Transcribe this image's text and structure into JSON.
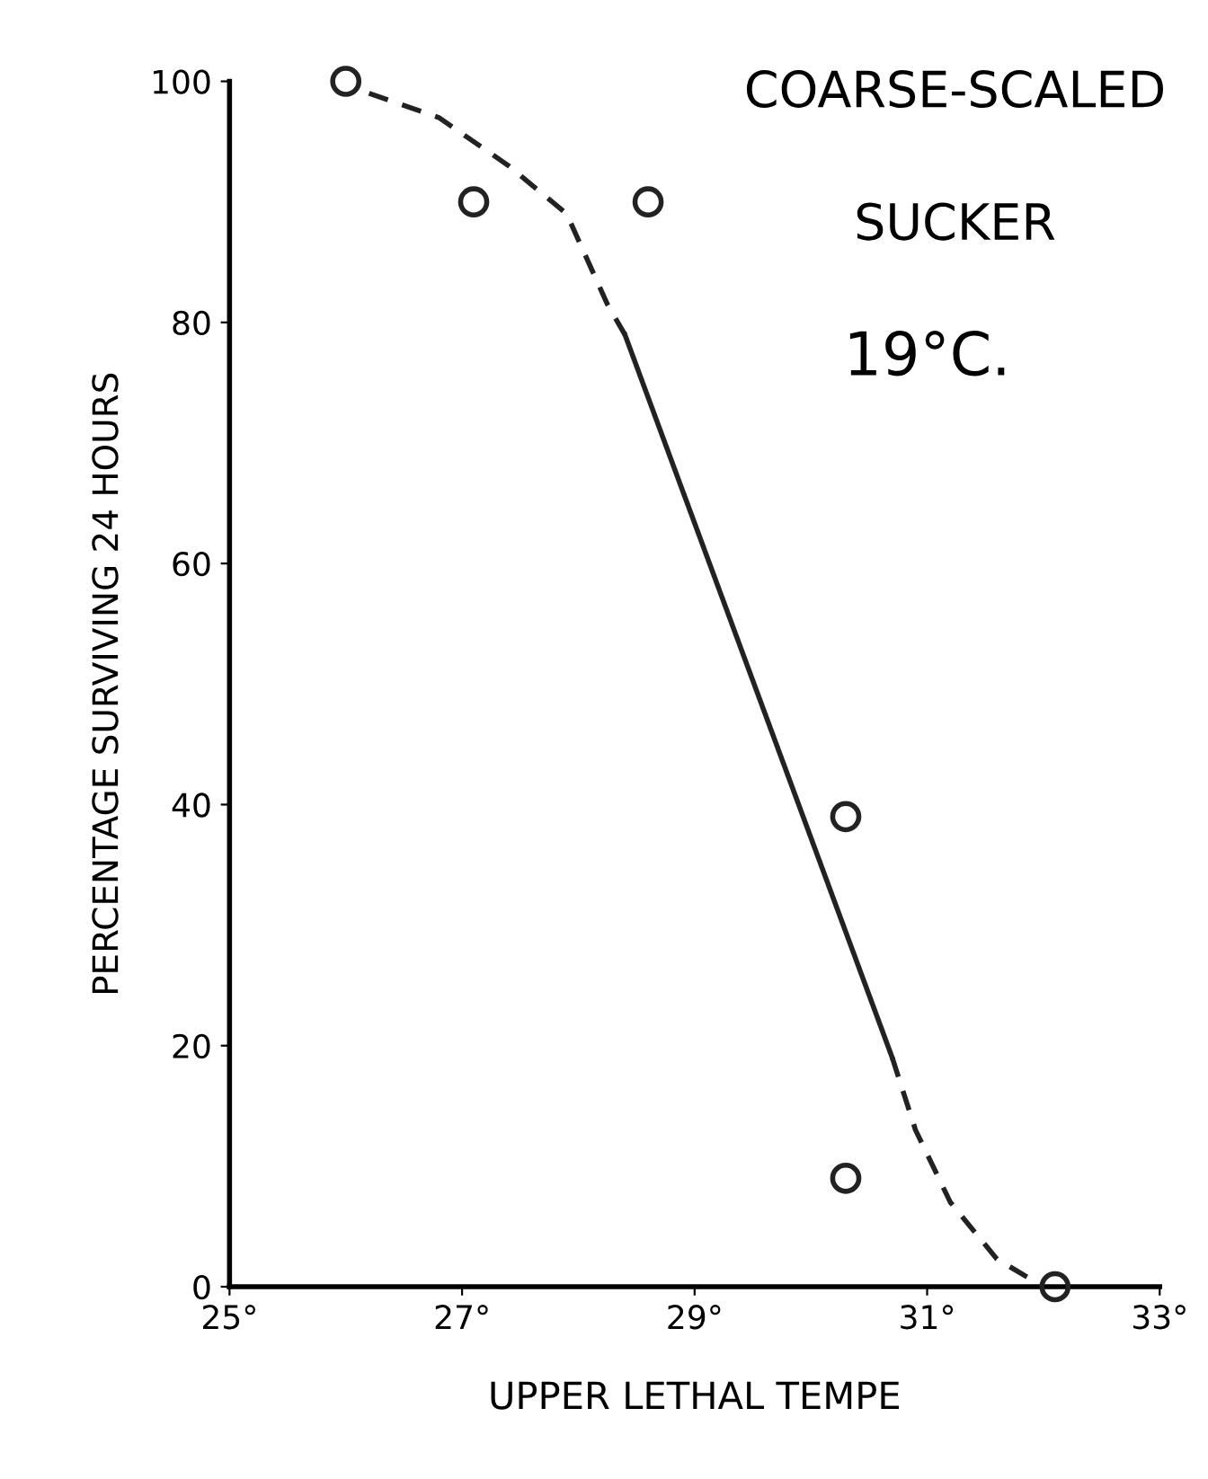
{
  "chart_data": {
    "type": "scatter",
    "xlabel": "UPPER LETHAL TEMPE",
    "ylabel": "PERCENTAGE SURVIVING 24 HOURS",
    "annotations": [
      "COARSE-SCALED",
      "SUCKER",
      "19°C."
    ],
    "series": [
      {
        "marker": "circle",
        "color": "#222222",
        "x": [
          26.0,
          27.1,
          28.6,
          30.3,
          30.3,
          32.1
        ],
        "values": [
          100,
          90,
          90,
          39,
          9,
          0
        ]
      },
      {
        "type": "line",
        "line_style": "dashed",
        "marker": "none",
        "color": "#222222",
        "x": [
          26.2,
          26.8,
          27.4,
          27.9,
          28.25,
          28.4
        ],
        "values": [
          99,
          97,
          93,
          89,
          81.5,
          79
        ]
      },
      {
        "type": "line",
        "line_style": "solid",
        "marker": "none",
        "color": "#222222",
        "x": [
          28.4,
          30.7
        ],
        "values": [
          79,
          19
        ]
      },
      {
        "type": "line",
        "line_style": "dashed",
        "marker": "none",
        "color": "#222222",
        "x": [
          30.7,
          30.9,
          31.2,
          31.6,
          32.0
        ],
        "values": [
          19,
          13,
          7,
          2.3,
          0
        ]
      }
    ],
    "xlim": [
      25,
      33
    ],
    "ylim": [
      0,
      100
    ],
    "xticks": [
      {
        "value": 25,
        "label": "25°"
      },
      {
        "value": 27,
        "label": "27°"
      },
      {
        "value": 29,
        "label": "29°"
      },
      {
        "value": 31,
        "label": "31°"
      },
      {
        "value": 33,
        "label": "33°"
      }
    ],
    "yticks": [
      0,
      20,
      40,
      60,
      80,
      100
    ],
    "grid": false
  }
}
